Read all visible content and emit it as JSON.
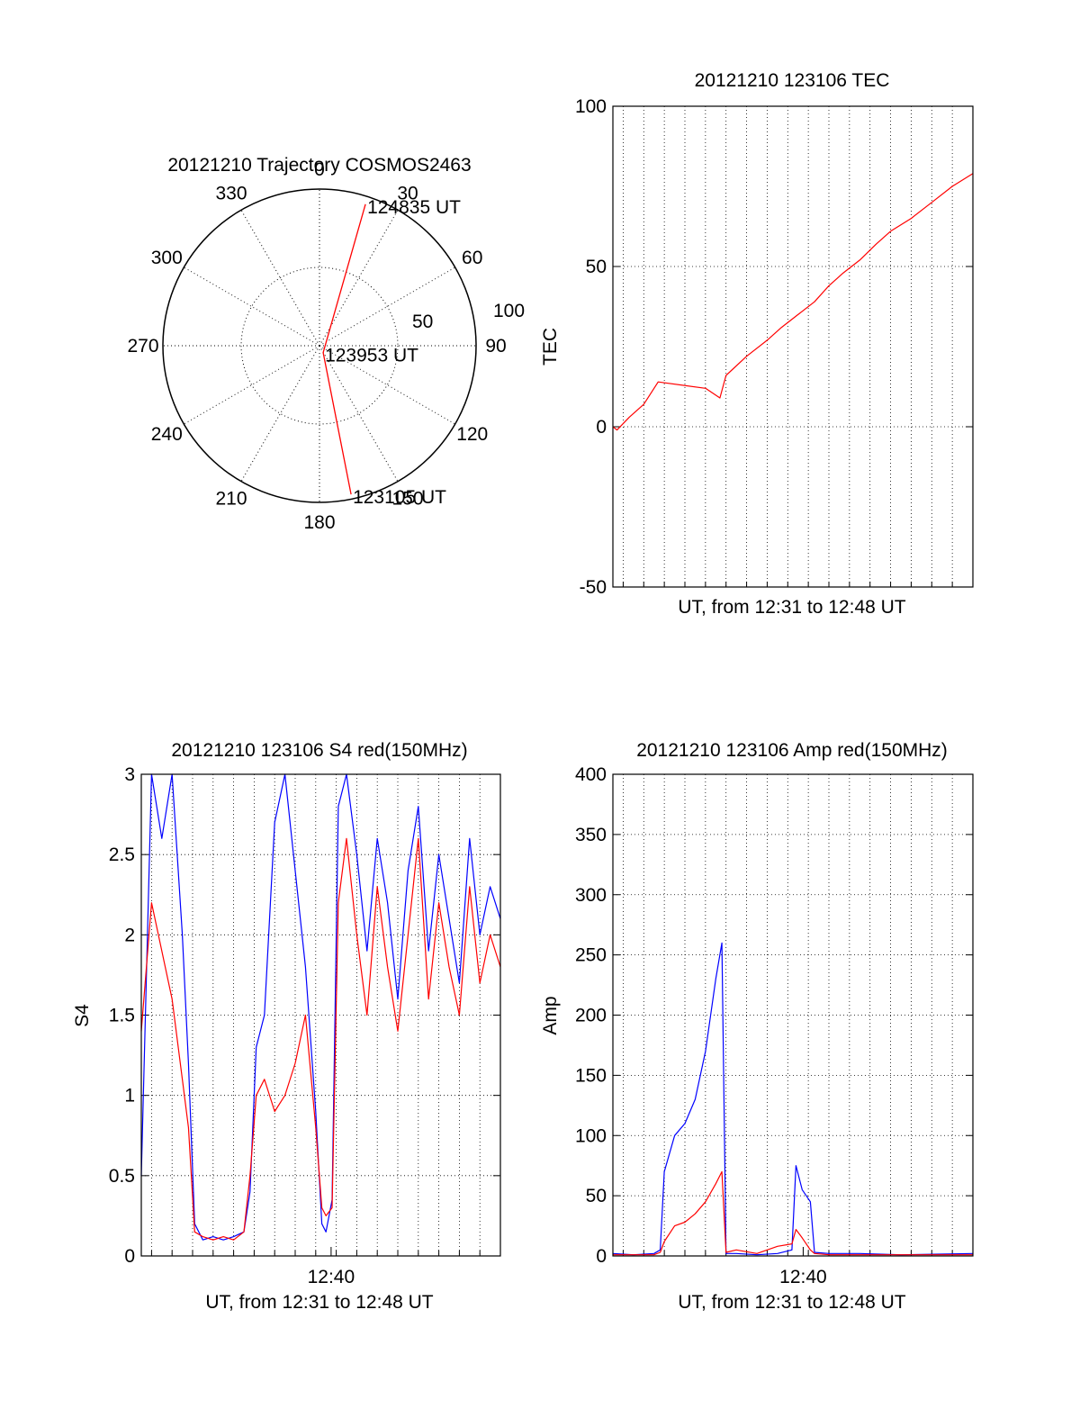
{
  "colors": {
    "red": "#ff0000",
    "blue": "#0000ff",
    "axis": "#000000",
    "grid": "#000000"
  },
  "chart_data": [
    {
      "id": "polar",
      "type": "polar-line",
      "title": "20121210 Trajectory COSMOS2463",
      "angle_ticks": [
        "0",
        "30",
        "60",
        "90",
        "120",
        "150",
        "180",
        "210",
        "240",
        "270",
        "300",
        "330"
      ],
      "radial_ticks": [
        "50",
        "100"
      ],
      "rmax": 100,
      "series": [
        {
          "color": "red",
          "points": [
            [
              18,
              95
            ],
            [
              152,
              5
            ],
            [
              168,
              97
            ]
          ]
        }
      ],
      "annotations": [
        {
          "text": "124835 UT",
          "az": 18,
          "r": 95
        },
        {
          "text": "123953 UT",
          "az": 152,
          "r": 5
        },
        {
          "text": "123105 UT",
          "az": 168,
          "r": 97
        }
      ],
      "grid": true
    },
    {
      "id": "tec",
      "type": "line",
      "title": "20121210 123106 TEC",
      "xlabel": "UT, from 12:31 to 12:48 UT",
      "ylabel": "TEC",
      "xlim": [
        0,
        17.5
      ],
      "ylim": [
        -50,
        100
      ],
      "yticks": [
        "-50",
        "0",
        "50",
        "100"
      ],
      "xtick_labels": [],
      "grid": true,
      "series": [
        {
          "color": "red",
          "x": [
            0,
            0.2,
            0.8,
            1.5,
            2.2,
            4.5,
            5.2,
            5.5,
            6.5,
            7.5,
            8.2,
            9.0,
            9.8,
            10.5,
            11.2,
            12.0,
            12.8,
            13.5,
            14.5,
            15.5,
            16.5,
            17.5
          ],
          "y": [
            0,
            -1,
            3,
            7,
            14,
            12,
            9,
            16,
            22,
            27,
            31,
            35,
            39,
            44,
            48,
            52,
            57,
            61,
            65,
            70,
            75,
            79
          ]
        }
      ]
    },
    {
      "id": "s4",
      "type": "line",
      "title": "20121210 123106 S4 red(150MHz)",
      "xlabel": "UT, from 12:31 to 12:48 UT",
      "ylabel": "S4",
      "xlim": [
        0,
        17.5
      ],
      "ylim": [
        0,
        3
      ],
      "yticks": [
        "0",
        "0.5",
        "1",
        "1.5",
        "2",
        "2.5",
        "3"
      ],
      "xtick_labels": [
        {
          "x": 9.25,
          "label": "12:40"
        }
      ],
      "grid": true,
      "series": [
        {
          "color": "blue",
          "x": [
            0,
            0.5,
            1,
            1.5,
            2,
            2.3,
            2.6,
            3,
            3.5,
            4,
            4.5,
            5,
            5.3,
            5.6,
            6,
            6.5,
            7,
            7.5,
            8,
            8.5,
            8.8,
            9,
            9.3,
            9.6,
            10,
            10.5,
            11,
            11.5,
            12,
            12.5,
            13,
            13.5,
            14,
            14.5,
            15,
            15.5,
            16,
            16.5,
            17,
            17.5
          ],
          "y": [
            0.5,
            3.0,
            2.6,
            3.0,
            2.0,
            1.2,
            0.2,
            0.1,
            0.12,
            0.1,
            0.12,
            0.15,
            0.4,
            1.3,
            1.5,
            2.7,
            3.0,
            2.4,
            1.8,
            0.9,
            0.2,
            0.15,
            0.35,
            2.8,
            3.0,
            2.5,
            1.9,
            2.6,
            2.2,
            1.6,
            2.4,
            2.8,
            1.9,
            2.5,
            2.1,
            1.7,
            2.6,
            2.0,
            2.3,
            2.1
          ]
        },
        {
          "color": "red",
          "x": [
            0,
            0.5,
            1,
            1.5,
            2,
            2.3,
            2.6,
            3,
            3.5,
            4,
            4.5,
            5,
            5.3,
            5.6,
            6,
            6.5,
            7,
            7.5,
            8,
            8.5,
            8.8,
            9,
            9.3,
            9.6,
            10,
            10.5,
            11,
            11.5,
            12,
            12.5,
            13,
            13.5,
            14,
            14.5,
            15,
            15.5,
            16,
            16.5,
            17,
            17.5
          ],
          "y": [
            1.4,
            2.2,
            1.9,
            1.6,
            1.1,
            0.8,
            0.15,
            0.12,
            0.1,
            0.12,
            0.1,
            0.15,
            0.5,
            1.0,
            1.1,
            0.9,
            1.0,
            1.2,
            1.5,
            0.8,
            0.3,
            0.25,
            0.3,
            2.2,
            2.6,
            2.0,
            1.5,
            2.3,
            1.8,
            1.4,
            2.0,
            2.6,
            1.6,
            2.2,
            1.8,
            1.5,
            2.3,
            1.7,
            2.0,
            1.8
          ]
        }
      ]
    },
    {
      "id": "amp",
      "type": "line",
      "title": "20121210 123106 Amp red(150MHz)",
      "xlabel": "UT, from 12:31 to 12:48 UT",
      "ylabel": "Amp",
      "xlim": [
        0,
        17.5
      ],
      "ylim": [
        0,
        400
      ],
      "yticks": [
        "0",
        "50",
        "100",
        "150",
        "200",
        "250",
        "300",
        "350",
        "400"
      ],
      "xtick_labels": [
        {
          "x": 9.25,
          "label": "12:40"
        }
      ],
      "grid": true,
      "series": [
        {
          "color": "blue",
          "x": [
            0,
            1,
            2,
            2.3,
            2.5,
            3,
            3.5,
            4,
            4.5,
            5,
            5.3,
            5.5,
            6,
            7,
            8,
            8.7,
            8.9,
            9.2,
            9.6,
            9.8,
            10.5,
            12,
            14,
            17.5
          ],
          "y": [
            2,
            1,
            2,
            5,
            70,
            100,
            110,
            130,
            170,
            230,
            260,
            2,
            2,
            1,
            2,
            5,
            75,
            55,
            45,
            3,
            2,
            2,
            1,
            2
          ]
        },
        {
          "color": "red",
          "x": [
            0,
            1,
            2,
            2.3,
            2.5,
            3,
            3.5,
            4,
            4.5,
            5,
            5.3,
            5.5,
            6,
            7,
            8,
            8.7,
            8.9,
            9.2,
            9.6,
            9.8,
            10.5,
            12,
            14,
            17.5
          ],
          "y": [
            1,
            1,
            1,
            3,
            12,
            25,
            28,
            35,
            45,
            60,
            70,
            3,
            5,
            2,
            8,
            10,
            22,
            15,
            5,
            2,
            1,
            1,
            1,
            1
          ]
        }
      ]
    }
  ]
}
